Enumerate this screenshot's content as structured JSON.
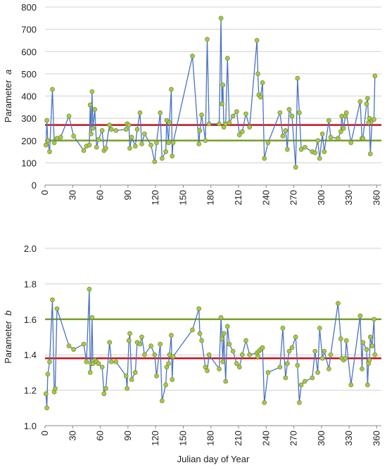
{
  "chart_data": [
    {
      "type": "line",
      "title": "",
      "xlabel": "",
      "ylabel": "Parameter",
      "ylabel_var": "a",
      "xlim": [
        0,
        365
      ],
      "ylim": [
        0,
        800
      ],
      "xticks": [
        0,
        30,
        60,
        90,
        120,
        150,
        180,
        210,
        240,
        270,
        300,
        330,
        360
      ],
      "yticks": [
        0,
        100,
        200,
        300,
        400,
        500,
        600,
        700,
        800
      ],
      "grid": "horizontal",
      "line_color": "#4a72c4",
      "marker_color": "#a9c74b",
      "series": [
        {
          "x": [
            1,
            2,
            3,
            5,
            8,
            10,
            13,
            17,
            26,
            31,
            42,
            45,
            48,
            49,
            50,
            51,
            52,
            54,
            56,
            58,
            62,
            64,
            66,
            70,
            72,
            77,
            88,
            89,
            91,
            92,
            94,
            98,
            100,
            103,
            105,
            108,
            115,
            119,
            121,
            125,
            127,
            131,
            132,
            134,
            135,
            137,
            138,
            139,
            160,
            167,
            168,
            170,
            174,
            176,
            178,
            189,
            191,
            192,
            193,
            194,
            196,
            198,
            200,
            204,
            208,
            211,
            214,
            218,
            222,
            230,
            231,
            232,
            234,
            236,
            238,
            242,
            255,
            258,
            261,
            263,
            265,
            268,
            272,
            274,
            276,
            278,
            282,
            290,
            293,
            296,
            298,
            301,
            303,
            308,
            310,
            318,
            321,
            322,
            324,
            326,
            327,
            332,
            342,
            344,
            345,
            349,
            350,
            351,
            352,
            353,
            355,
            357,
            358
          ],
          "y": [
            180,
            290,
            200,
            150,
            430,
            190,
            210,
            215,
            310,
            220,
            155,
            175,
            180,
            360,
            230,
            420,
            255,
            340,
            170,
            205,
            245,
            155,
            165,
            270,
            250,
            245,
            250,
            275,
            270,
            165,
            215,
            175,
            250,
            325,
            185,
            230,
            180,
            105,
            190,
            325,
            120,
            150,
            290,
            190,
            280,
            430,
            130,
            190,
            580,
            185,
            245,
            315,
            200,
            655,
            275,
            275,
            750,
            365,
            450,
            260,
            275,
            570,
            280,
            310,
            330,
            225,
            240,
            320,
            260,
            650,
            500,
            405,
            395,
            460,
            120,
            190,
            325,
            220,
            245,
            160,
            340,
            310,
            80,
            480,
            325,
            160,
            170,
            150,
            145,
            200,
            120,
            230,
            150,
            290,
            215,
            210,
            240,
            310,
            255,
            310,
            325,
            190,
            375,
            210,
            210,
            365,
            390,
            280,
            300,
            140,
            290,
            295,
            490
          ]
        }
      ],
      "reference_lines": [
        {
          "y": 270,
          "color": "#c0141e"
        },
        {
          "y": 200,
          "color": "#78a02a"
        }
      ]
    },
    {
      "type": "line",
      "title": "",
      "xlabel": "Julian day of Year",
      "ylabel": "Parameter",
      "ylabel_var": "b",
      "xlim": [
        0,
        365
      ],
      "ylim": [
        1.0,
        2.0
      ],
      "xticks": [
        0,
        30,
        60,
        90,
        120,
        150,
        180,
        210,
        240,
        270,
        300,
        330,
        360
      ],
      "yticks": [
        "1.0",
        "1.2",
        "1.4",
        "1.6",
        "1.8",
        "2.0"
      ],
      "grid": "horizontal",
      "line_color": "#4a72c4",
      "marker_color": "#a9c74b",
      "series": [
        {
          "x": [
            1,
            2,
            3,
            5,
            8,
            10,
            11,
            13,
            26,
            31,
            42,
            45,
            48,
            49,
            50,
            51,
            52,
            54,
            56,
            58,
            62,
            64,
            66,
            70,
            72,
            77,
            88,
            89,
            91,
            92,
            94,
            98,
            100,
            103,
            105,
            108,
            115,
            119,
            121,
            125,
            127,
            131,
            132,
            134,
            135,
            137,
            138,
            139,
            160,
            167,
            168,
            170,
            174,
            176,
            178,
            189,
            191,
            192,
            193,
            194,
            196,
            198,
            200,
            204,
            208,
            211,
            214,
            218,
            222,
            230,
            231,
            232,
            234,
            236,
            238,
            242,
            255,
            258,
            261,
            263,
            265,
            268,
            272,
            274,
            276,
            278,
            282,
            290,
            293,
            296,
            298,
            301,
            303,
            308,
            310,
            318,
            321,
            322,
            324,
            326,
            327,
            332,
            342,
            344,
            345,
            349,
            350,
            351,
            352,
            353,
            355,
            357,
            358
          ],
          "y": [
            1.18,
            1.1,
            1.29,
            1.36,
            1.71,
            1.19,
            1.21,
            1.66,
            1.45,
            1.43,
            1.46,
            1.36,
            1.77,
            1.3,
            1.35,
            1.61,
            1.35,
            1.37,
            1.36,
            1.35,
            1.33,
            1.18,
            1.21,
            1.47,
            1.36,
            1.36,
            1.28,
            1.21,
            1.48,
            1.52,
            1.26,
            1.3,
            1.47,
            1.46,
            1.5,
            1.4,
            1.45,
            1.4,
            1.28,
            1.46,
            1.14,
            1.23,
            1.33,
            1.35,
            1.4,
            1.51,
            1.26,
            1.39,
            1.54,
            1.66,
            1.52,
            1.48,
            1.33,
            1.31,
            1.4,
            1.32,
            1.61,
            1.49,
            1.36,
            1.52,
            1.25,
            1.56,
            1.46,
            1.42,
            1.35,
            1.33,
            1.4,
            1.48,
            1.4,
            1.41,
            1.39,
            1.42,
            1.43,
            1.44,
            1.13,
            1.3,
            1.33,
            1.55,
            1.27,
            1.35,
            1.42,
            1.44,
            1.5,
            1.34,
            1.13,
            1.23,
            1.25,
            1.27,
            1.42,
            1.3,
            1.55,
            1.38,
            1.42,
            1.32,
            1.4,
            1.69,
            1.49,
            1.38,
            1.37,
            1.38,
            1.48,
            1.23,
            1.62,
            1.32,
            1.47,
            1.43,
            1.23,
            1.35,
            1.37,
            1.5,
            1.45,
            1.6,
            1.4
          ]
        }
      ],
      "reference_lines": [
        {
          "y": 1.6,
          "color": "#78a02a"
        },
        {
          "y": 1.38,
          "color": "#c0141e"
        }
      ]
    }
  ]
}
